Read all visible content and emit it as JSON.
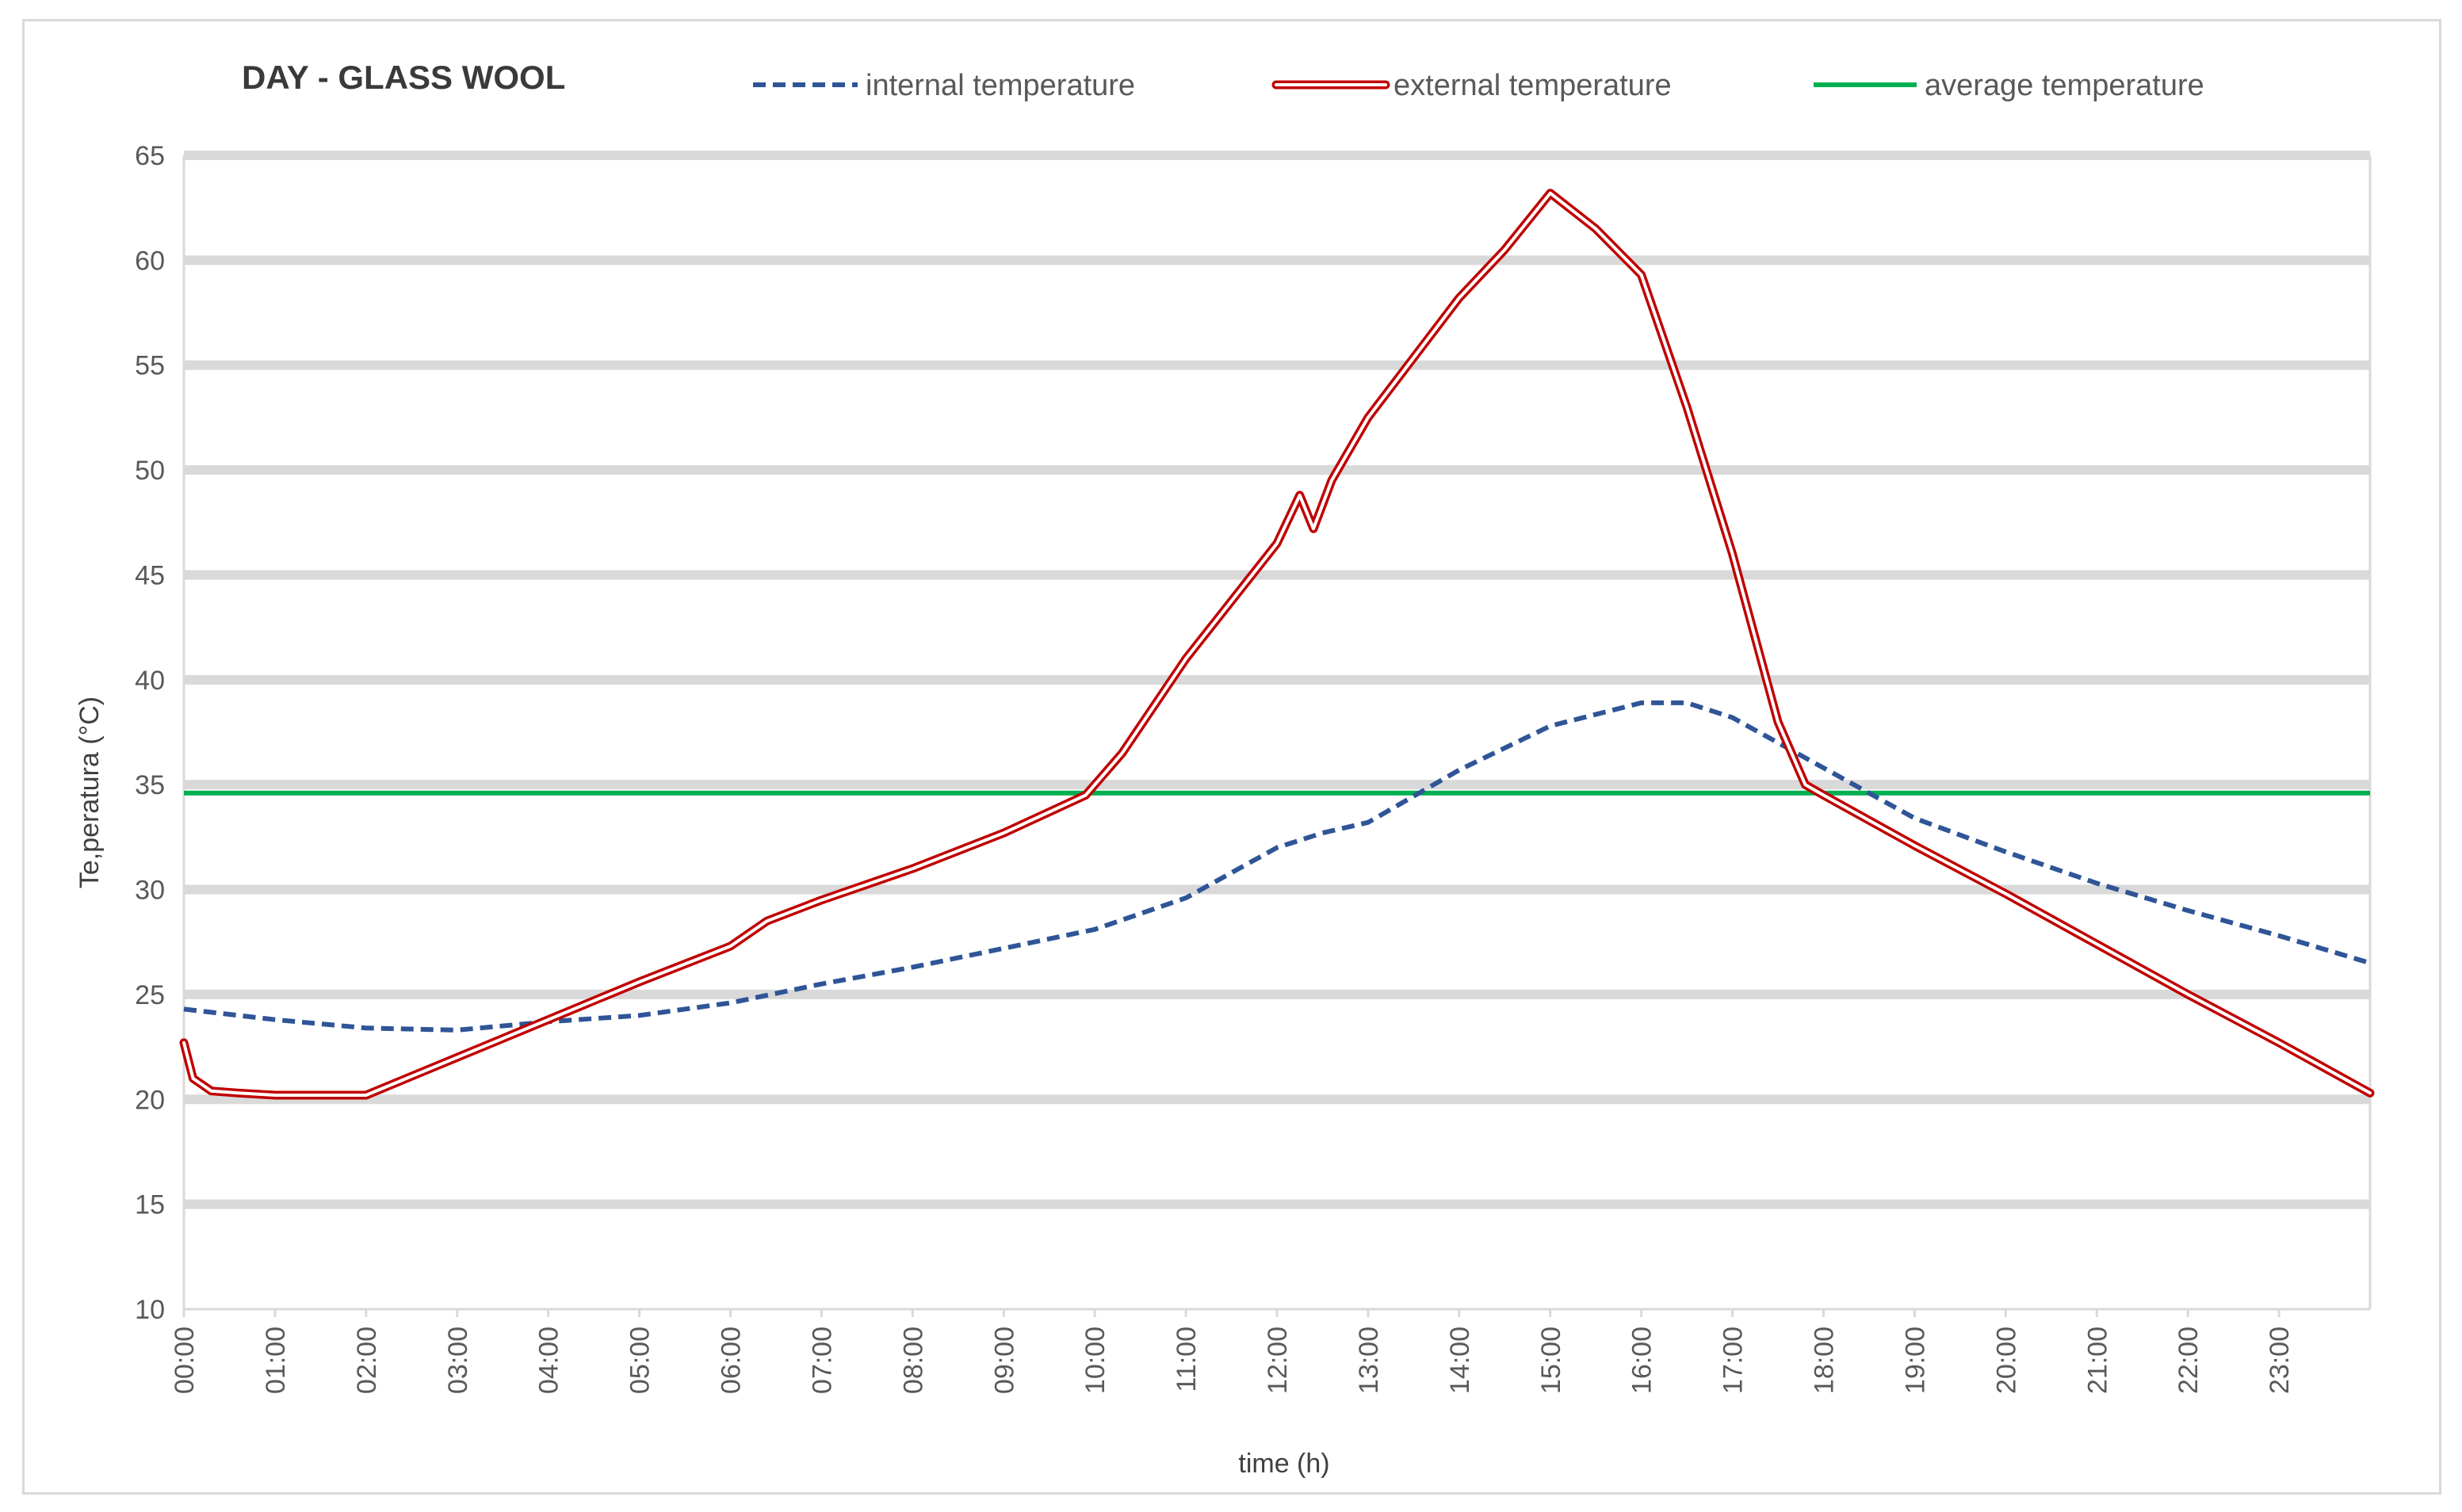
{
  "chart_data": {
    "type": "line",
    "title": "DAY - GLASS WOOL",
    "xlabel": "time (h)",
    "ylabel": "Te,peratura (°C)",
    "xlim": [
      0,
      24
    ],
    "ylim": [
      10,
      65
    ],
    "y_ticks": [
      10,
      15,
      20,
      25,
      30,
      35,
      40,
      45,
      50,
      55,
      60,
      65
    ],
    "x_tick_labels": [
      "00:00",
      "01:00",
      "02:00",
      "03:00",
      "04:00",
      "05:00",
      "06:00",
      "07:00",
      "08:00",
      "09:00",
      "10:00",
      "11:00",
      "12:00",
      "13:00",
      "14:00",
      "15:00",
      "16:00",
      "17:00",
      "18:00",
      "19:00",
      "20:00",
      "21:00",
      "22:00",
      "23:00"
    ],
    "grid": "horizontal",
    "legend_position": "top",
    "series": [
      {
        "name": "internal temperature",
        "style": "dashed",
        "color": "#2f5597",
        "x": [
          0,
          1,
          2,
          3,
          4,
          5,
          6,
          7,
          8,
          9,
          10,
          11,
          12,
          12.5,
          13,
          14,
          15,
          16,
          16.5,
          17,
          18,
          19,
          20,
          21,
          22,
          23,
          24
        ],
        "y": [
          24.3,
          23.8,
          23.4,
          23.3,
          23.7,
          24.0,
          24.6,
          25.5,
          26.3,
          27.2,
          28.1,
          29.6,
          32.0,
          32.7,
          33.2,
          35.7,
          37.8,
          38.9,
          38.9,
          38.2,
          35.8,
          33.4,
          31.8,
          30.3,
          29.0,
          27.8,
          26.5
        ]
      },
      {
        "name": "external temperature",
        "style": "double",
        "color": "#c00000",
        "x": [
          0,
          0.1,
          0.3,
          0.6,
          1,
          1.5,
          2,
          3,
          4,
          5,
          6,
          6.4,
          7,
          8,
          9,
          9.9,
          10.3,
          11,
          12,
          12.25,
          12.4,
          12.6,
          13,
          14,
          14.5,
          15,
          15.5,
          16,
          16.5,
          17,
          17.5,
          17.8,
          18,
          19,
          20,
          21,
          22,
          23,
          24
        ],
        "y": [
          22.7,
          21.0,
          20.4,
          20.3,
          20.2,
          20.2,
          20.2,
          22.0,
          23.8,
          25.6,
          27.3,
          28.5,
          29.5,
          31.0,
          32.7,
          34.5,
          36.5,
          41.0,
          46.5,
          48.8,
          47.2,
          49.5,
          52.5,
          58.2,
          60.5,
          63.2,
          61.5,
          59.3,
          53.0,
          46.0,
          38.0,
          35.0,
          34.5,
          32.1,
          29.8,
          27.4,
          25.0,
          22.7,
          20.3
        ]
      },
      {
        "name": "average temperature",
        "style": "solid",
        "color": "#00b050",
        "x": [
          0,
          24
        ],
        "y": [
          34.6,
          34.6
        ]
      }
    ]
  }
}
